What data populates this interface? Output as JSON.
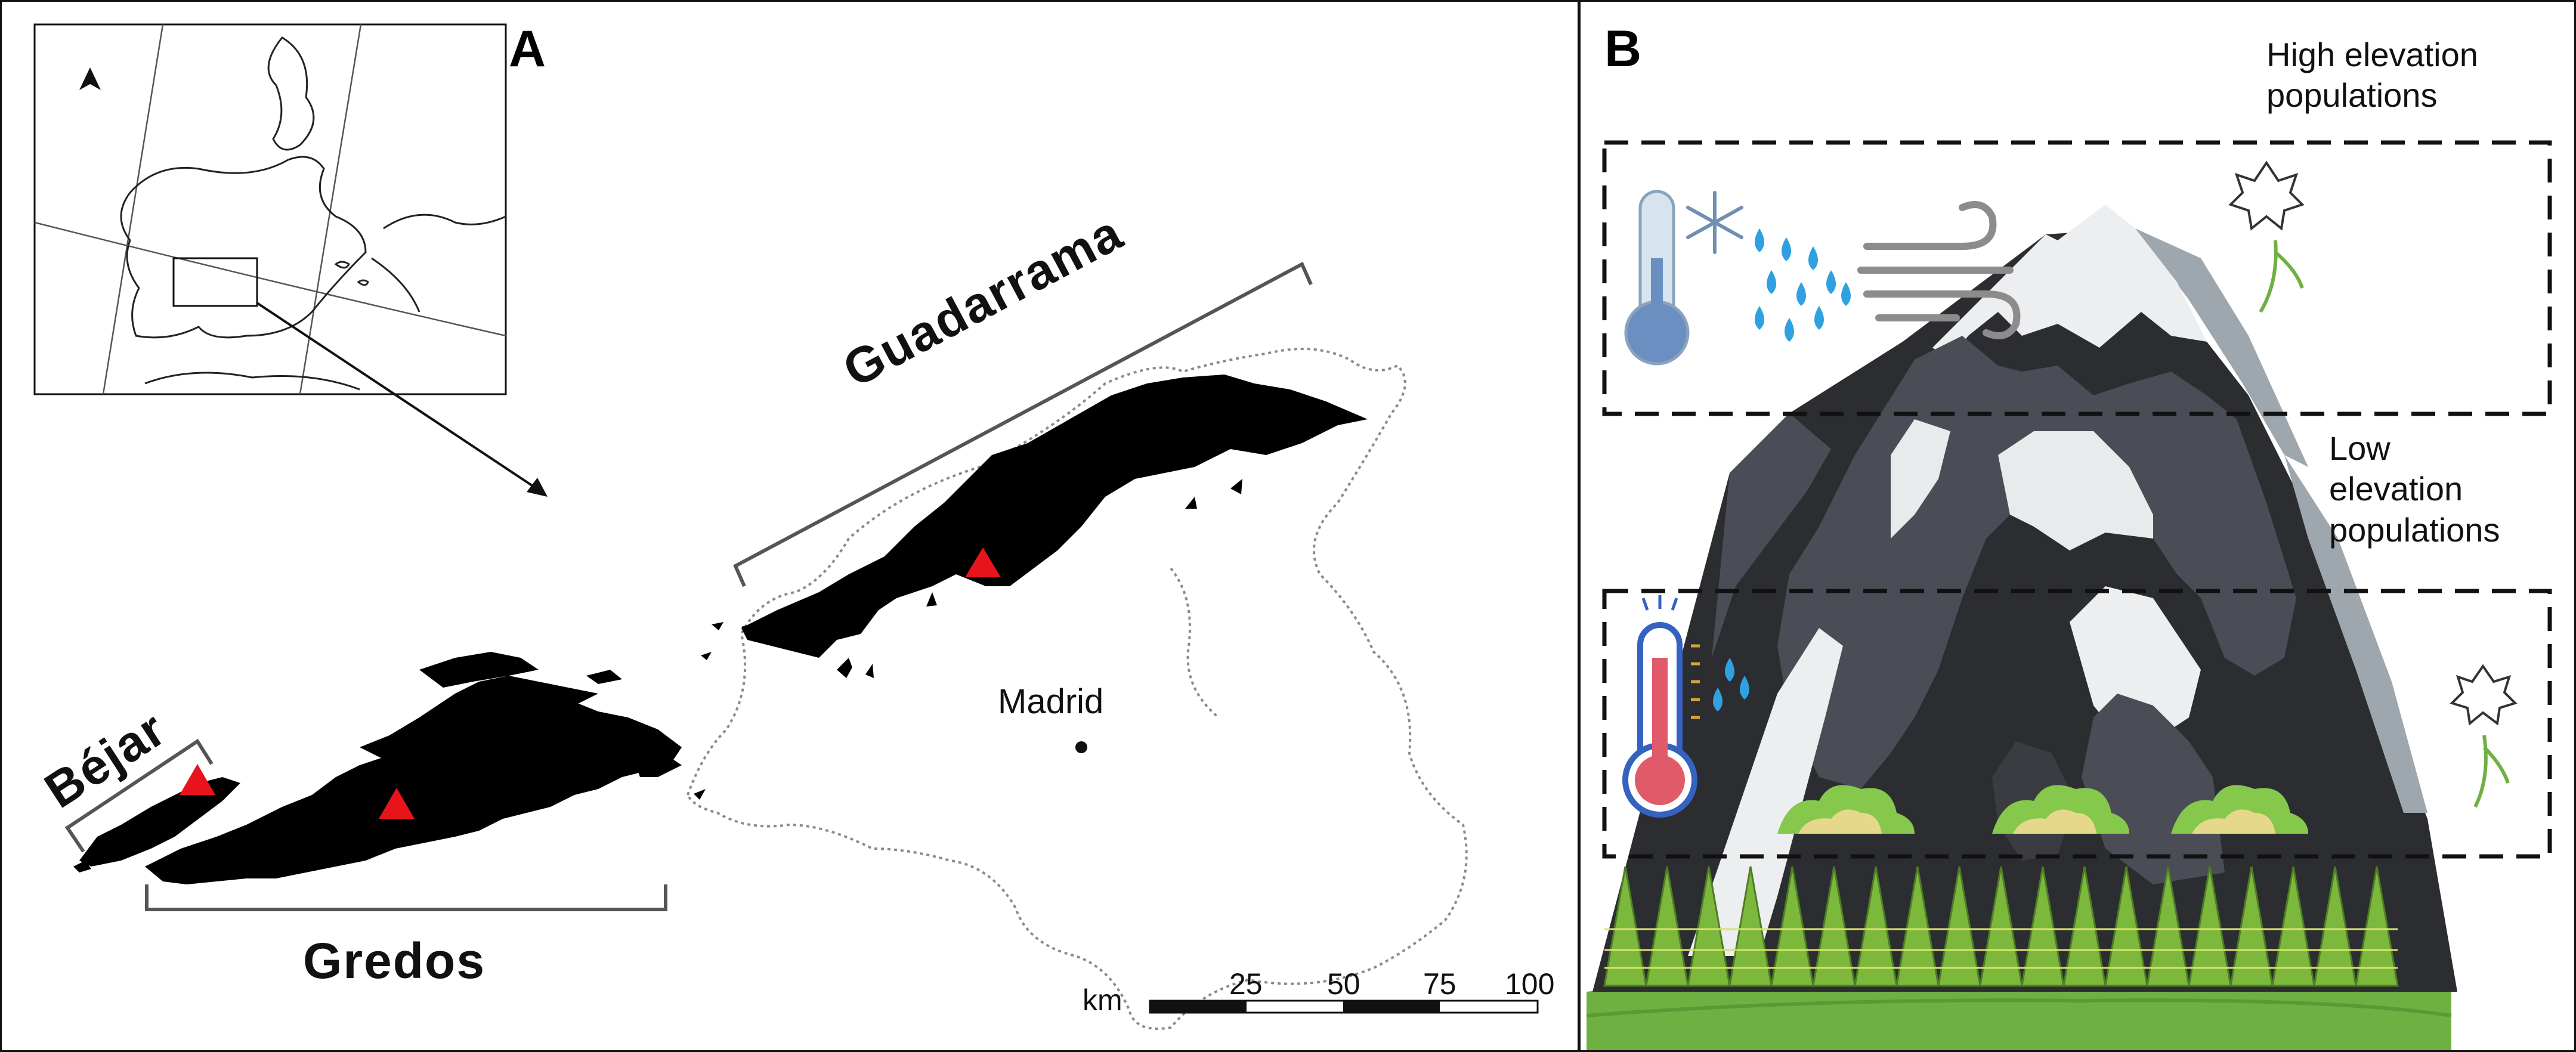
{
  "panel_a": {
    "letter": "A",
    "labels": {
      "guadarrama": "Guadarrama",
      "bejar": "Béjar",
      "gredos": "Gredos",
      "madrid": "Madrid"
    },
    "scale": {
      "unit": "km",
      "ticks": [
        "25",
        "50",
        "75",
        "100"
      ]
    },
    "north_arrow": "north-arrow-icon"
  },
  "panel_b": {
    "letter": "B",
    "high_label": "High elevation\npopulations",
    "low_label": "Low\nelevation\npopulations",
    "icons": [
      "cold-thermometer-icon",
      "snowflake-icon",
      "rain-drops-icon",
      "wind-icon",
      "hot-thermometer-icon",
      "small-drops-icon",
      "plant-icon",
      "shrub-icon",
      "forest-icon"
    ]
  },
  "colors": {
    "sierra": "#000000",
    "site_marker": "#e8141b",
    "boundary": "#8a8a8a",
    "mountain_dark": "#2b2d31",
    "mountain_mid": "#4a4d55",
    "snow": "#ecedef",
    "grass": "#6fb042"
  }
}
